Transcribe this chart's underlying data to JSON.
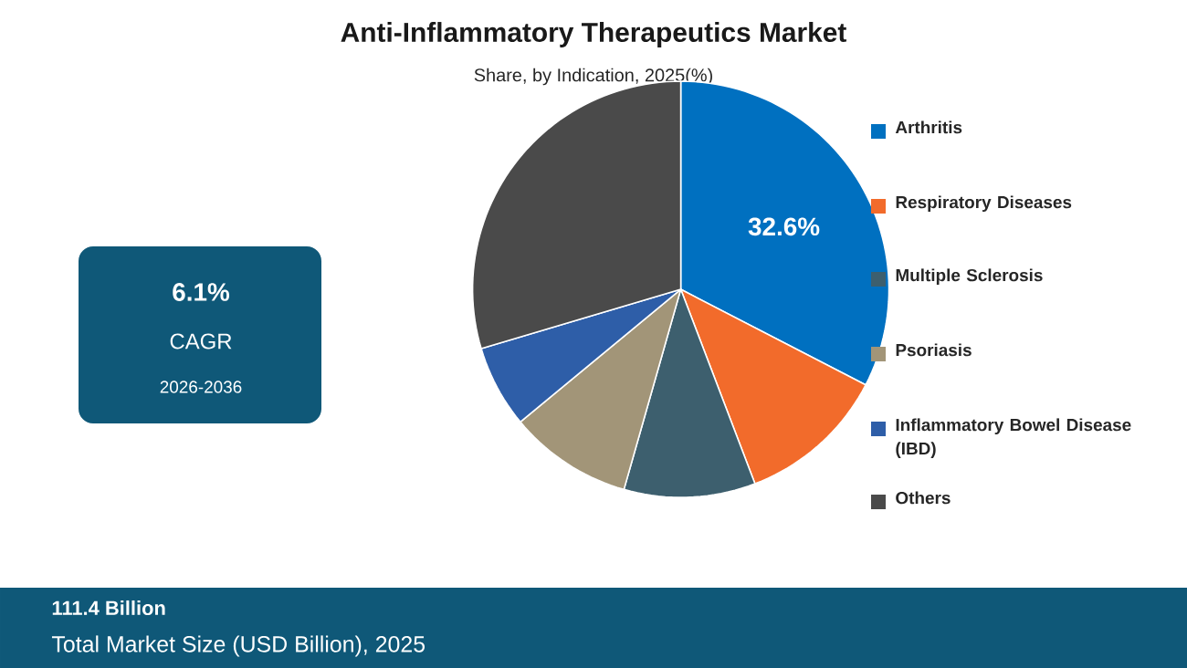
{
  "chart_data": {
    "type": "pie",
    "title": "Anti-Inflammatory Therapeutics Market",
    "subtitle": "Share, by Indication, 2025(%)",
    "categories": [
      "Arthritis",
      "Respiratory Diseases",
      "Multiple Sclerosis",
      "Psoriasis",
      "Inflammatory Bowel Disease (IBD)",
      "Others"
    ],
    "values": [
      32.6,
      11.6,
      10.2,
      9.6,
      6.4,
      29.6
    ],
    "colors": [
      "#0070c0",
      "#f26b2b",
      "#3d5f6e",
      "#a29578",
      "#2e5ea8",
      "#4a4a4a"
    ],
    "value_labels": [
      "32.6%",
      null,
      null,
      null,
      null,
      null
    ],
    "legend": "right",
    "annotations": [
      "6.1%",
      "CAGR",
      "2026-2036",
      "111.4 Billion",
      "Total Market Size (USD Billion), 2025"
    ]
  }
}
